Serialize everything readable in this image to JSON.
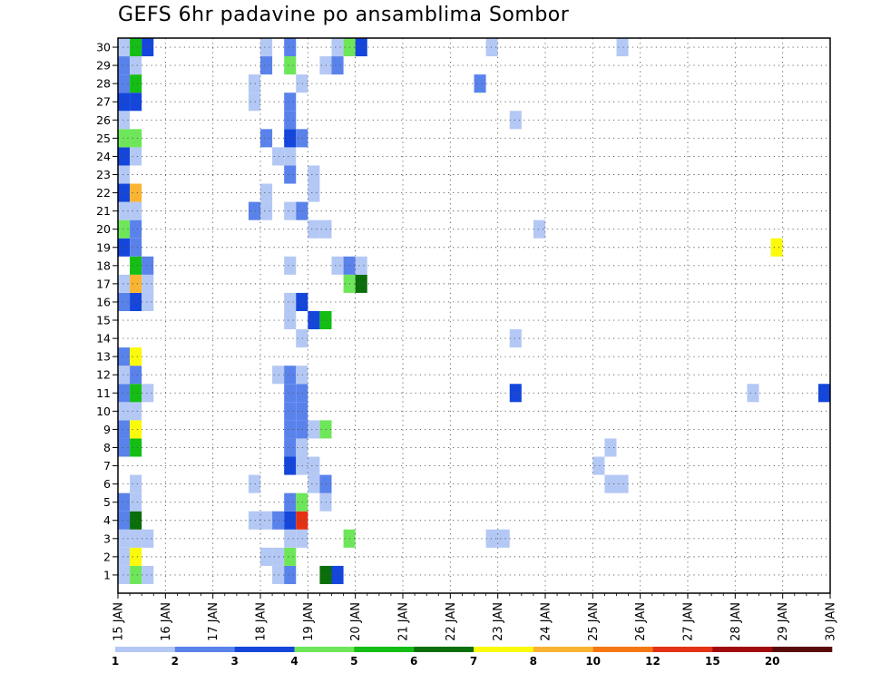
{
  "title": "GEFS 6hr padavine po ansamblima Sombor",
  "chart_data": {
    "type": "heatmap",
    "title": "GEFS 6hr padavine po ansamblima Sombor",
    "xlabel": "",
    "ylabel": "",
    "x_ticks": [
      "15 JAN",
      "16 JAN",
      "17 JAN",
      "18 JAN",
      "19 JAN",
      "20 JAN",
      "21 JAN",
      "22 JAN",
      "23 JAN",
      "24 JAN",
      "25 JAN",
      "26 JAN",
      "27 JAN",
      "28 JAN",
      "29 JAN",
      "30 JAN"
    ],
    "y_ticks": [
      "1",
      "2",
      "3",
      "4",
      "5",
      "6",
      "7",
      "8",
      "9",
      "10",
      "11",
      "12",
      "13",
      "14",
      "15",
      "16",
      "17",
      "18",
      "19",
      "20",
      "21",
      "22",
      "23",
      "24",
      "25",
      "26",
      "27",
      "28",
      "29",
      "30"
    ],
    "time_step_hours": 6,
    "grid": "dotted",
    "legend": {
      "position": "bottom",
      "thresholds": [
        "1",
        "2",
        "3",
        "4",
        "5",
        "6",
        "7",
        "8",
        "10",
        "12",
        "15",
        "20"
      ],
      "colors": [
        "#b4c8f5",
        "#5a82eb",
        "#1446dc",
        "#6ee65a",
        "#14be14",
        "#0a6e0a",
        "#fafa0a",
        "#fab432",
        "#f57814",
        "#e63214",
        "#a00a0a",
        "#5a0a0a"
      ]
    },
    "cells": [
      {
        "member": 1,
        "step": 1,
        "level": 1
      },
      {
        "member": 1,
        "step": 2,
        "level": 4
      },
      {
        "member": 1,
        "step": 3,
        "level": 1
      },
      {
        "member": 1,
        "step": 14,
        "level": 1
      },
      {
        "member": 1,
        "step": 15,
        "level": 2
      },
      {
        "member": 1,
        "step": 18,
        "level": 6
      },
      {
        "member": 1,
        "step": 19,
        "level": 3
      },
      {
        "member": 2,
        "step": 1,
        "level": 1
      },
      {
        "member": 2,
        "step": 2,
        "level": 7
      },
      {
        "member": 2,
        "step": 13,
        "level": 1
      },
      {
        "member": 2,
        "step": 14,
        "level": 1
      },
      {
        "member": 2,
        "step": 15,
        "level": 4
      },
      {
        "member": 3,
        "step": 1,
        "level": 1
      },
      {
        "member": 3,
        "step": 2,
        "level": 1
      },
      {
        "member": 3,
        "step": 3,
        "level": 1
      },
      {
        "member": 3,
        "step": 15,
        "level": 1
      },
      {
        "member": 3,
        "step": 16,
        "level": 1
      },
      {
        "member": 3,
        "step": 20,
        "level": 4
      },
      {
        "member": 3,
        "step": 32,
        "level": 1
      },
      {
        "member": 3,
        "step": 33,
        "level": 1
      },
      {
        "member": 4,
        "step": 1,
        "level": 2
      },
      {
        "member": 4,
        "step": 2,
        "level": 6
      },
      {
        "member": 4,
        "step": 12,
        "level": 1
      },
      {
        "member": 4,
        "step": 13,
        "level": 1
      },
      {
        "member": 4,
        "step": 14,
        "level": 2
      },
      {
        "member": 4,
        "step": 15,
        "level": 3
      },
      {
        "member": 4,
        "step": 16,
        "level": 10
      },
      {
        "member": 5,
        "step": 1,
        "level": 2
      },
      {
        "member": 5,
        "step": 2,
        "level": 1
      },
      {
        "member": 5,
        "step": 15,
        "level": 2
      },
      {
        "member": 5,
        "step": 16,
        "level": 4
      },
      {
        "member": 5,
        "step": 18,
        "level": 1
      },
      {
        "member": 6,
        "step": 2,
        "level": 1
      },
      {
        "member": 6,
        "step": 12,
        "level": 1
      },
      {
        "member": 6,
        "step": 17,
        "level": 1
      },
      {
        "member": 6,
        "step": 18,
        "level": 2
      },
      {
        "member": 6,
        "step": 42,
        "level": 1
      },
      {
        "member": 6,
        "step": 43,
        "level": 1
      },
      {
        "member": 7,
        "step": 15,
        "level": 3
      },
      {
        "member": 7,
        "step": 16,
        "level": 1
      },
      {
        "member": 7,
        "step": 17,
        "level": 1
      },
      {
        "member": 7,
        "step": 41,
        "level": 1
      },
      {
        "member": 8,
        "step": 1,
        "level": 2
      },
      {
        "member": 8,
        "step": 2,
        "level": 5
      },
      {
        "member": 8,
        "step": 15,
        "level": 2
      },
      {
        "member": 8,
        "step": 16,
        "level": 1
      },
      {
        "member": 8,
        "step": 42,
        "level": 1
      },
      {
        "member": 9,
        "step": 1,
        "level": 2
      },
      {
        "member": 9,
        "step": 2,
        "level": 7
      },
      {
        "member": 9,
        "step": 15,
        "level": 2
      },
      {
        "member": 9,
        "step": 16,
        "level": 2
      },
      {
        "member": 9,
        "step": 17,
        "level": 1
      },
      {
        "member": 9,
        "step": 18,
        "level": 4
      },
      {
        "member": 10,
        "step": 1,
        "level": 1
      },
      {
        "member": 10,
        "step": 2,
        "level": 1
      },
      {
        "member": 10,
        "step": 15,
        "level": 2
      },
      {
        "member": 10,
        "step": 16,
        "level": 2
      },
      {
        "member": 11,
        "step": 1,
        "level": 2
      },
      {
        "member": 11,
        "step": 2,
        "level": 5
      },
      {
        "member": 11,
        "step": 3,
        "level": 1
      },
      {
        "member": 11,
        "step": 15,
        "level": 2
      },
      {
        "member": 11,
        "step": 16,
        "level": 2
      },
      {
        "member": 11,
        "step": 34,
        "level": 3
      },
      {
        "member": 11,
        "step": 54,
        "level": 1
      },
      {
        "member": 11,
        "step": 60,
        "level": 3
      },
      {
        "member": 12,
        "step": 1,
        "level": 1
      },
      {
        "member": 12,
        "step": 2,
        "level": 2
      },
      {
        "member": 12,
        "step": 14,
        "level": 1
      },
      {
        "member": 12,
        "step": 15,
        "level": 2
      },
      {
        "member": 12,
        "step": 16,
        "level": 1
      },
      {
        "member": 13,
        "step": 1,
        "level": 2
      },
      {
        "member": 13,
        "step": 2,
        "level": 7
      },
      {
        "member": 14,
        "step": 16,
        "level": 1
      },
      {
        "member": 14,
        "step": 34,
        "level": 1
      },
      {
        "member": 15,
        "step": 15,
        "level": 1
      },
      {
        "member": 15,
        "step": 17,
        "level": 3
      },
      {
        "member": 15,
        "step": 18,
        "level": 5
      },
      {
        "member": 16,
        "step": 1,
        "level": 2
      },
      {
        "member": 16,
        "step": 2,
        "level": 3
      },
      {
        "member": 16,
        "step": 3,
        "level": 1
      },
      {
        "member": 16,
        "step": 15,
        "level": 1
      },
      {
        "member": 16,
        "step": 16,
        "level": 3
      },
      {
        "member": 17,
        "step": 1,
        "level": 1
      },
      {
        "member": 17,
        "step": 2,
        "level": 8
      },
      {
        "member": 17,
        "step": 3,
        "level": 1
      },
      {
        "member": 17,
        "step": 20,
        "level": 4
      },
      {
        "member": 17,
        "step": 21,
        "level": 6
      },
      {
        "member": 18,
        "step": 2,
        "level": 5
      },
      {
        "member": 18,
        "step": 3,
        "level": 2
      },
      {
        "member": 18,
        "step": 15,
        "level": 1
      },
      {
        "member": 18,
        "step": 19,
        "level": 1
      },
      {
        "member": 18,
        "step": 20,
        "level": 2
      },
      {
        "member": 18,
        "step": 21,
        "level": 1
      },
      {
        "member": 19,
        "step": 1,
        "level": 3
      },
      {
        "member": 19,
        "step": 2,
        "level": 2
      },
      {
        "member": 19,
        "step": 56,
        "level": 7
      },
      {
        "member": 20,
        "step": 1,
        "level": 4
      },
      {
        "member": 20,
        "step": 2,
        "level": 2
      },
      {
        "member": 20,
        "step": 17,
        "level": 1
      },
      {
        "member": 20,
        "step": 18,
        "level": 1
      },
      {
        "member": 20,
        "step": 36,
        "level": 1
      },
      {
        "member": 21,
        "step": 1,
        "level": 1
      },
      {
        "member": 21,
        "step": 2,
        "level": 1
      },
      {
        "member": 21,
        "step": 12,
        "level": 2
      },
      {
        "member": 21,
        "step": 13,
        "level": 1
      },
      {
        "member": 21,
        "step": 15,
        "level": 1
      },
      {
        "member": 21,
        "step": 16,
        "level": 2
      },
      {
        "member": 22,
        "step": 1,
        "level": 3
      },
      {
        "member": 22,
        "step": 2,
        "level": 8
      },
      {
        "member": 22,
        "step": 13,
        "level": 1
      },
      {
        "member": 22,
        "step": 17,
        "level": 1
      },
      {
        "member": 23,
        "step": 1,
        "level": 1
      },
      {
        "member": 23,
        "step": 15,
        "level": 2
      },
      {
        "member": 23,
        "step": 17,
        "level": 1
      },
      {
        "member": 24,
        "step": 1,
        "level": 3
      },
      {
        "member": 24,
        "step": 2,
        "level": 1
      },
      {
        "member": 24,
        "step": 14,
        "level": 1
      },
      {
        "member": 24,
        "step": 15,
        "level": 1
      },
      {
        "member": 25,
        "step": 1,
        "level": 4
      },
      {
        "member": 25,
        "step": 2,
        "level": 4
      },
      {
        "member": 25,
        "step": 13,
        "level": 2
      },
      {
        "member": 25,
        "step": 15,
        "level": 3
      },
      {
        "member": 25,
        "step": 16,
        "level": 2
      },
      {
        "member": 26,
        "step": 1,
        "level": 1
      },
      {
        "member": 26,
        "step": 15,
        "level": 2
      },
      {
        "member": 26,
        "step": 34,
        "level": 1
      },
      {
        "member": 27,
        "step": 1,
        "level": 3
      },
      {
        "member": 27,
        "step": 2,
        "level": 3
      },
      {
        "member": 27,
        "step": 12,
        "level": 1
      },
      {
        "member": 27,
        "step": 15,
        "level": 2
      },
      {
        "member": 28,
        "step": 1,
        "level": 2
      },
      {
        "member": 28,
        "step": 2,
        "level": 5
      },
      {
        "member": 28,
        "step": 12,
        "level": 1
      },
      {
        "member": 28,
        "step": 16,
        "level": 1
      },
      {
        "member": 28,
        "step": 31,
        "level": 2
      },
      {
        "member": 29,
        "step": 1,
        "level": 2
      },
      {
        "member": 29,
        "step": 2,
        "level": 1
      },
      {
        "member": 29,
        "step": 13,
        "level": 2
      },
      {
        "member": 29,
        "step": 15,
        "level": 4
      },
      {
        "member": 29,
        "step": 18,
        "level": 1
      },
      {
        "member": 29,
        "step": 19,
        "level": 2
      },
      {
        "member": 30,
        "step": 1,
        "level": 1
      },
      {
        "member": 30,
        "step": 2,
        "level": 5
      },
      {
        "member": 30,
        "step": 3,
        "level": 3
      },
      {
        "member": 30,
        "step": 13,
        "level": 1
      },
      {
        "member": 30,
        "step": 15,
        "level": 2
      },
      {
        "member": 30,
        "step": 19,
        "level": 1
      },
      {
        "member": 30,
        "step": 20,
        "level": 4
      },
      {
        "member": 30,
        "step": 21,
        "level": 3
      },
      {
        "member": 30,
        "step": 32,
        "level": 1
      },
      {
        "member": 30,
        "step": 43,
        "level": 1
      }
    ]
  }
}
